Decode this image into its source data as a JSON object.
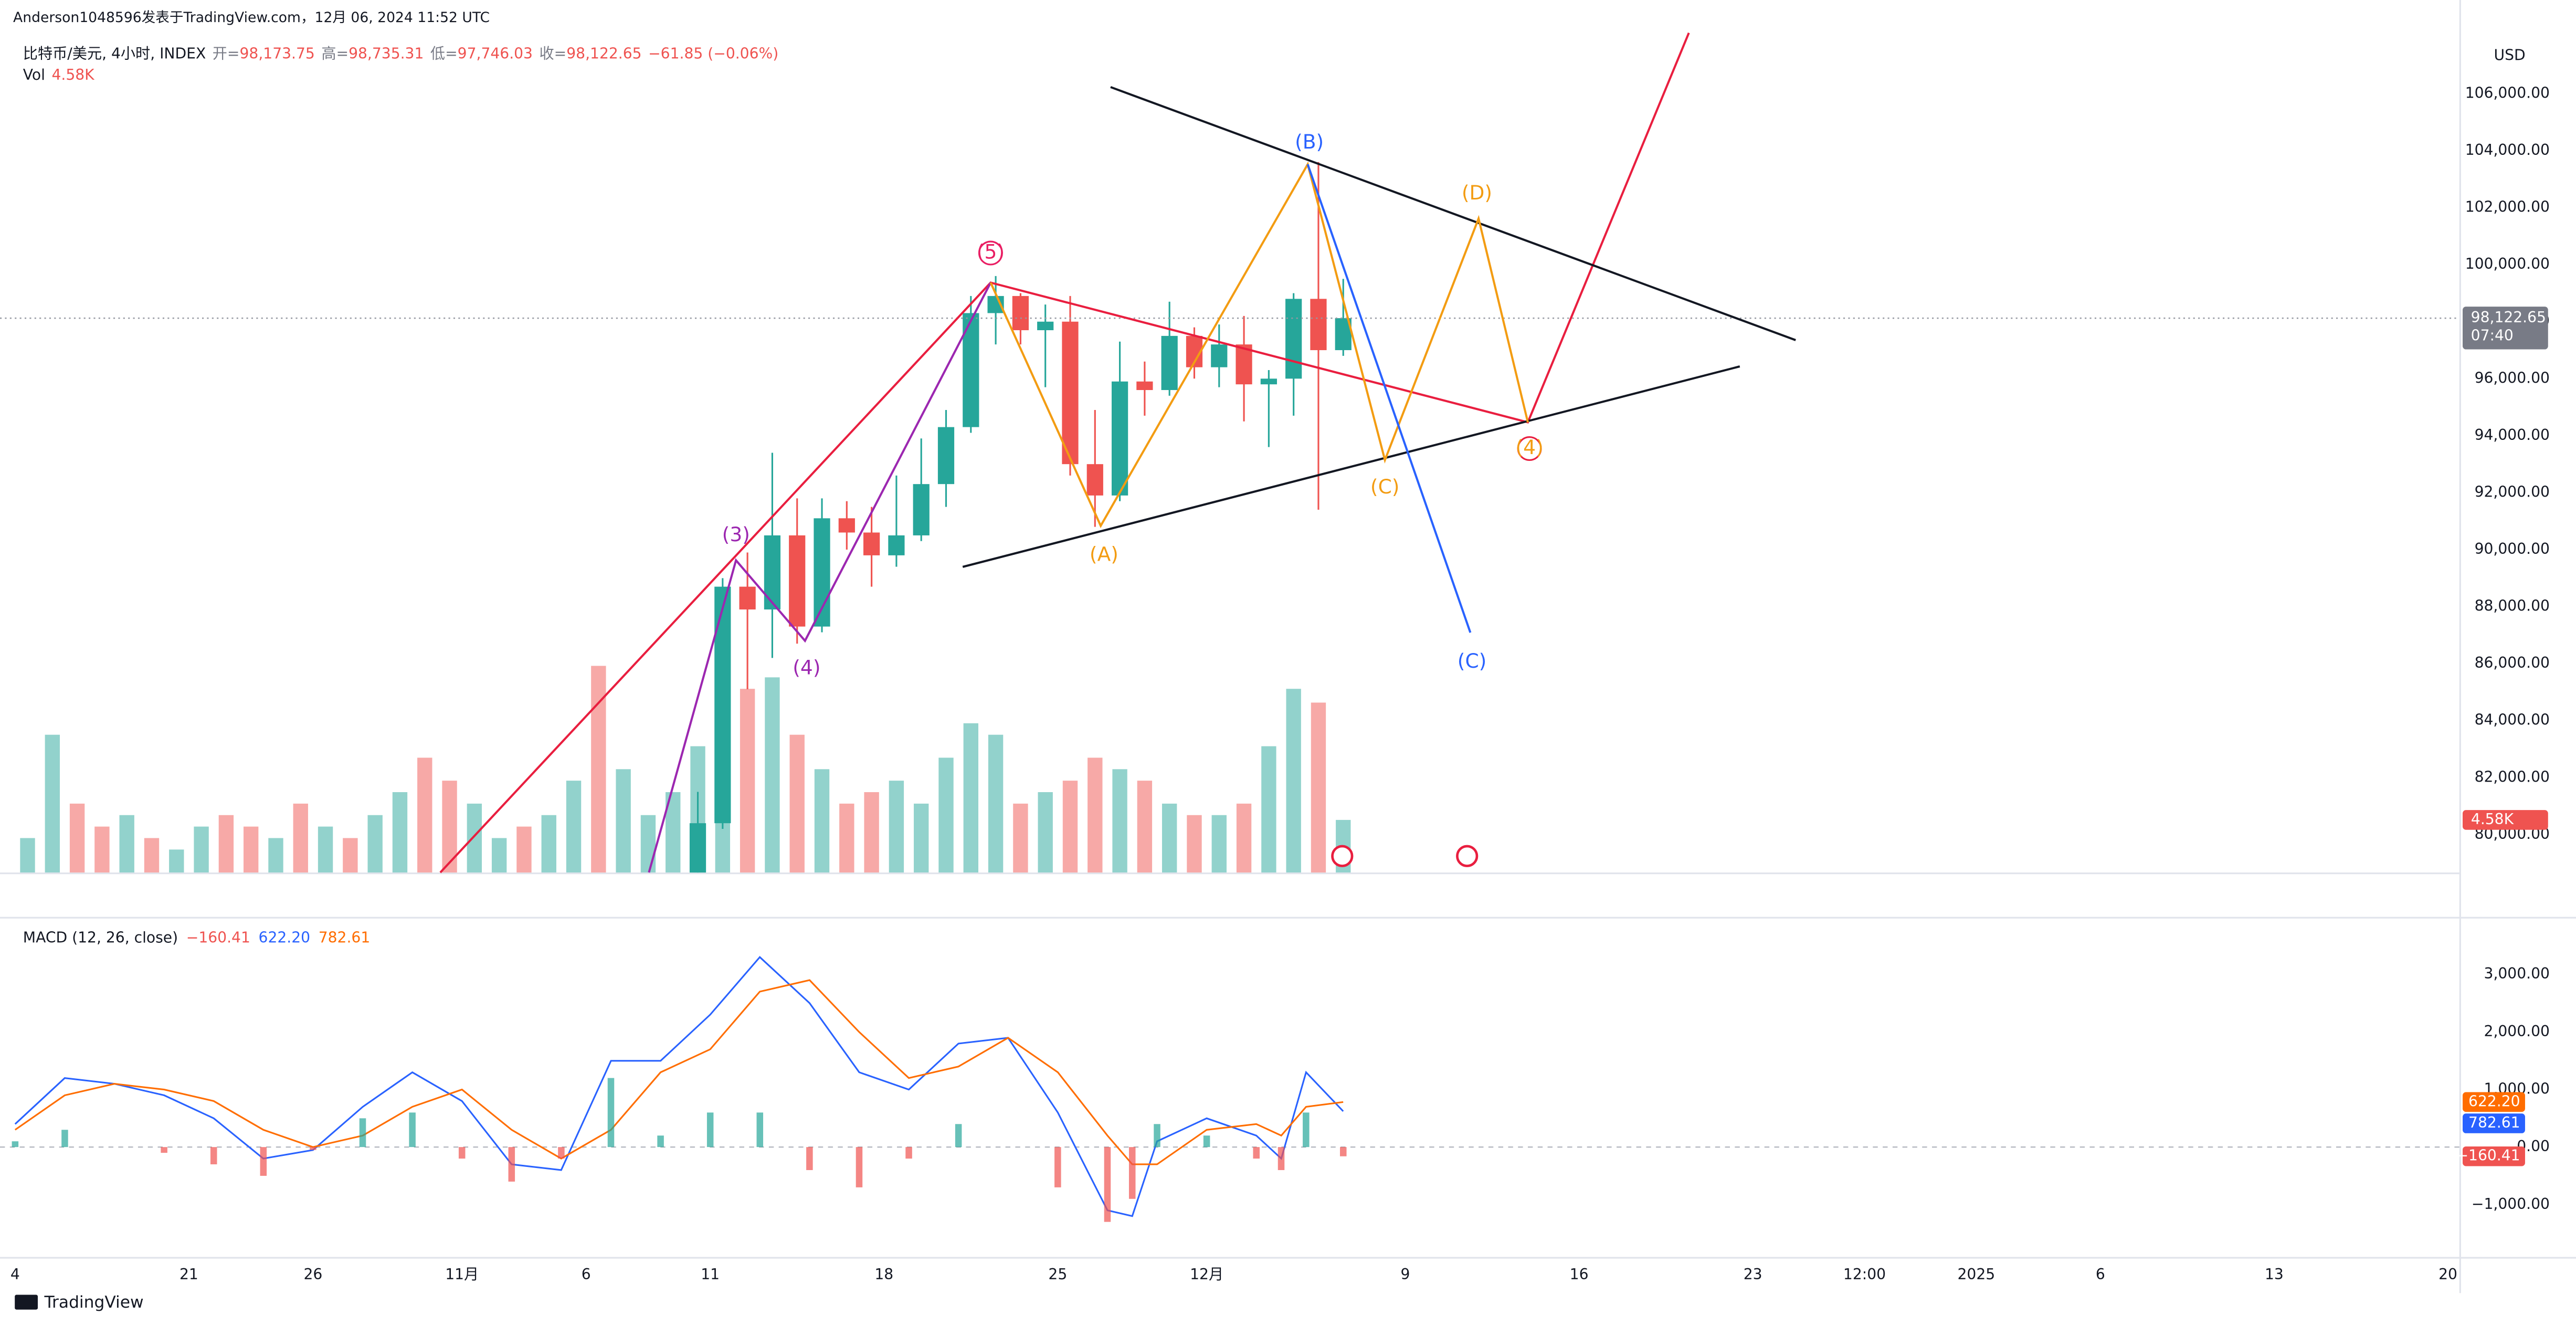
{
  "header": {
    "publisher": "Anderson1048596发表于TradingView.com，12月 06, 2024 11:52 UTC",
    "symbol": "比特币/美元, 4小时, INDEX",
    "ohlc": [
      {
        "label": "开=",
        "value": "98,173.75"
      },
      {
        "label": "高=",
        "value": "98,735.31"
      },
      {
        "label": "低=",
        "value": "97,746.03"
      },
      {
        "label": "收=",
        "value": "98,122.65"
      }
    ],
    "change": "−61.85 (−0.06%)",
    "volume_label": "Vol",
    "volume_value": "4.58K"
  },
  "currency": "USD",
  "price_tag": "98,122.65",
  "countdown": "07:40",
  "volume_tag": "4.58K",
  "annotations": [
    "(3)",
    "(4)",
    "(5)",
    "(A)",
    "(B)",
    "(C)",
    "(D)",
    "(C)",
    "(4)"
  ],
  "footer": "TradingView",
  "chart_data": [
    {
      "type": "candlestick",
      "xlim": [
        13.39,
        112.46
      ],
      "ylim": [
        78670,
        108480
      ],
      "up_color": "#26a69a",
      "down_color": "#ef5350",
      "x": [
        41,
        42,
        43,
        44,
        45,
        46,
        47,
        48,
        49,
        50,
        51,
        52,
        53,
        54,
        55,
        56,
        57,
        58,
        59,
        60,
        61,
        62,
        63,
        64,
        65,
        66,
        67
      ],
      "open": [
        76600,
        80400,
        88700,
        87900,
        90500,
        87300,
        91100,
        90600,
        89800,
        90500,
        92300,
        94300,
        98300,
        98900,
        97700,
        98000,
        93000,
        91900,
        95900,
        95600,
        97500,
        96400,
        97200,
        95800,
        96000,
        98800,
        97000
      ],
      "high": [
        81500,
        89000,
        89900,
        93400,
        91800,
        91800,
        91700,
        91500,
        92600,
        93900,
        94900,
        98900,
        99600,
        99000,
        98600,
        98900,
        94900,
        97300,
        96600,
        98700,
        97800,
        97900,
        98200,
        96300,
        99000,
        103600,
        99500
      ],
      "low": [
        76500,
        80200,
        85100,
        86200,
        86700,
        87100,
        90000,
        88700,
        89400,
        90300,
        91500,
        94100,
        97200,
        97200,
        95700,
        92600,
        90800,
        91700,
        94700,
        95400,
        96000,
        95700,
        94500,
        93600,
        94700,
        91400,
        96800
      ],
      "close": [
        80400,
        88700,
        87900,
        90500,
        87300,
        91100,
        90600,
        89800,
        90500,
        92300,
        94300,
        98300,
        98900,
        97700,
        98000,
        93000,
        91900,
        95900,
        95600,
        97500,
        96400,
        97200,
        95800,
        96000,
        98800,
        97000,
        98122.65
      ],
      "yticks": [
        {
          "value": 80000,
          "label": "80,000.00"
        },
        {
          "value": 82000,
          "label": "82,000.00"
        },
        {
          "value": 84000,
          "label": "84,000.00"
        },
        {
          "value": 86000,
          "label": "86,000.00"
        },
        {
          "value": 88000,
          "label": "88,000.00"
        },
        {
          "value": 90000,
          "label": "90,000.00"
        },
        {
          "value": 92000,
          "label": "92,000.00"
        },
        {
          "value": 94000,
          "label": "94,000.00"
        },
        {
          "value": 96000,
          "label": "96,000.00"
        },
        {
          "value": 98000,
          "label": "98,000.00"
        },
        {
          "value": 100000,
          "label": "100,000.00"
        },
        {
          "value": 102000,
          "label": "102,000.00"
        },
        {
          "value": 104000,
          "label": "104,000.00"
        },
        {
          "value": 106000,
          "label": "106,000.00"
        }
      ],
      "last_price": 98122.65
    },
    {
      "type": "bar",
      "xlim": [
        13.39,
        112.46
      ],
      "ylim": [
        0,
        74
      ],
      "x": [
        14,
        15,
        16,
        17,
        18,
        19,
        20,
        21,
        22,
        23,
        24,
        25,
        26,
        27,
        28,
        29,
        30,
        31,
        32,
        33,
        34,
        35,
        36,
        37,
        38,
        39,
        40,
        41,
        42,
        43,
        44,
        45,
        46,
        47,
        48,
        49,
        50,
        51,
        52,
        53,
        54,
        55,
        56,
        57,
        58,
        59,
        60,
        61,
        62,
        63,
        64,
        65,
        66,
        67
      ],
      "values": [
        3,
        12,
        6,
        4,
        5,
        3,
        2,
        4,
        5,
        4,
        3,
        6,
        4,
        3,
        5,
        7,
        10,
        8,
        6,
        3,
        4,
        5,
        8,
        18,
        9,
        5,
        7,
        11,
        15,
        16,
        17,
        12,
        9,
        6,
        7,
        8,
        6,
        10,
        13,
        12,
        6,
        7,
        8,
        10,
        9,
        8,
        6,
        5,
        5,
        6,
        11,
        16,
        14.8,
        4.58
      ],
      "colors": [
        "#26a69a",
        "#26a69a",
        "#ef5350",
        "#ef5350",
        "#26a69a",
        "#ef5350",
        "#26a69a",
        "#26a69a",
        "#ef5350",
        "#ef5350",
        "#26a69a",
        "#ef5350",
        "#26a69a",
        "#ef5350",
        "#26a69a",
        "#26a69a",
        "#ef5350",
        "#ef5350",
        "#26a69a",
        "#26a69a",
        "#ef5350",
        "#26a69a",
        "#26a69a",
        "#ef5350",
        "#26a69a",
        "#26a69a",
        "#26a69a",
        "#26a69a",
        "#26a69a",
        "#ef5350",
        "#26a69a",
        "#ef5350",
        "#26a69a",
        "#ef5350",
        "#ef5350",
        "#26a69a",
        "#26a69a",
        "#26a69a",
        "#26a69a",
        "#26a69a",
        "#ef5350",
        "#26a69a",
        "#ef5350",
        "#ef5350",
        "#26a69a",
        "#ef5350",
        "#26a69a",
        "#ef5350",
        "#26a69a",
        "#ef5350",
        "#26a69a",
        "#26a69a",
        "#ef5350",
        "#26a69a"
      ]
    },
    {
      "type": "line",
      "title": "MACD (12, 26, close)",
      "xlim": [
        13.39,
        112.46
      ],
      "ylim": [
        -1910,
        4000
      ],
      "x": [
        14,
        16,
        18,
        20,
        22,
        24,
        26,
        28,
        30,
        32,
        34,
        36,
        38,
        40,
        42,
        44,
        46,
        48,
        50,
        52,
        54,
        56,
        58,
        59,
        60,
        62,
        64,
        65,
        66,
        67.5
      ],
      "series": [
        {
          "color": "#2962ff",
          "values": [
            400,
            1200,
            1100,
            900,
            500,
            -200,
            -50,
            700,
            1300,
            800,
            -300,
            -400,
            1500,
            1500,
            2300,
            3300,
            2500,
            1300,
            1000,
            1800,
            1900,
            600,
            -1100,
            -1200,
            100,
            500,
            200,
            -200,
            1300,
            622.2
          ]
        },
        {
          "color": "#ff6d00",
          "values": [
            300,
            900,
            1100,
            1000,
            800,
            300,
            0,
            200,
            700,
            1000,
            300,
            -200,
            300,
            1300,
            1700,
            2700,
            2900,
            2000,
            1200,
            1400,
            1900,
            1300,
            200,
            -300,
            -300,
            300,
            400,
            200,
            700,
            782.61
          ]
        },
        {
          "style": "histogram",
          "colors": [
            "#26a69a",
            "#ef5350"
          ],
          "values": [
            100,
            300,
            0,
            -100,
            -300,
            -500,
            -50,
            500,
            600,
            -200,
            -600,
            -200,
            1200,
            200,
            600,
            600,
            -400,
            -700,
            -200,
            400,
            0,
            -700,
            -1300,
            -900,
            400,
            200,
            -200,
            -400,
            600,
            -160.41
          ]
        }
      ],
      "legend_values": [
        "−160.41",
        "622.20",
        "782.61"
      ],
      "yticks": [
        {
          "value": 3000,
          "label": "3,000.00"
        },
        {
          "value": 2000,
          "label": "2,000.00"
        },
        {
          "value": 1000,
          "label": "1,000.00"
        },
        {
          "value": 0,
          "label": "0.00"
        },
        {
          "value": -1000,
          "label": "−1,000.00"
        }
      ],
      "xticks": [
        {
          "value": 14,
          "label": "4"
        },
        21,
        26,
        {
          "value": 32,
          "label": "11月"
        },
        {
          "value": 37,
          "label": "6"
        },
        {
          "value": 42,
          "label": "11"
        },
        {
          "value": 49,
          "label": "18"
        },
        {
          "value": 56,
          "label": "25"
        },
        {
          "value": 62,
          "label": "12月"
        },
        {
          "value": 70,
          "label": "9"
        },
        {
          "value": 77,
          "label": "16"
        },
        {
          "value": 84,
          "label": "23"
        },
        {
          "value": 88.5,
          "label": "12:00"
        },
        {
          "value": 93,
          "label": "2025"
        },
        {
          "value": 98,
          "label": "6"
        },
        {
          "value": 105,
          "label": "13"
        },
        {
          "value": 112,
          "label": "20"
        }
      ]
    }
  ]
}
